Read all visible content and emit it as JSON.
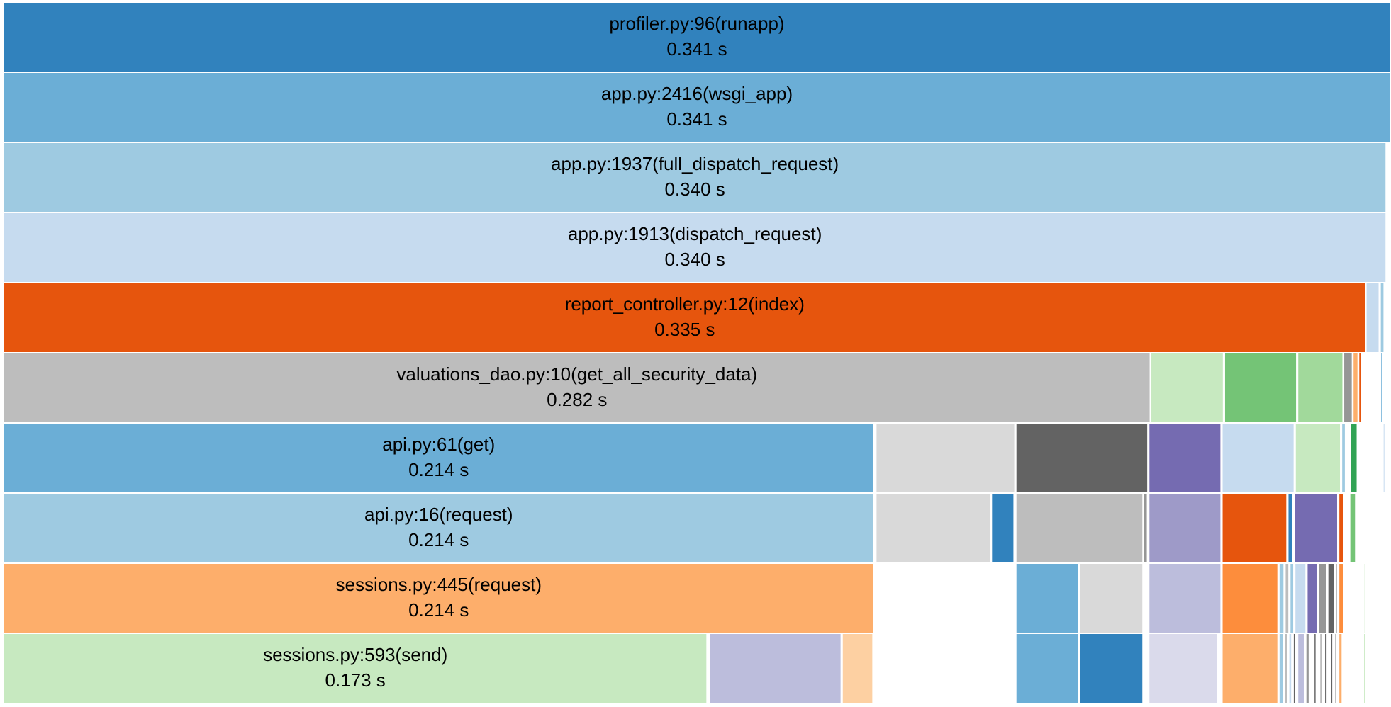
{
  "chart_data": {
    "type": "icicle",
    "title": "",
    "xlabel": "",
    "ylabel": "",
    "unit": "s",
    "x_domain": [
      0,
      0.341
    ],
    "levels": 10,
    "nodes": [
      {
        "label": "profiler.py:96(runapp)",
        "value": 0.341,
        "value_label": "0.341 s",
        "depth": 0,
        "start": 0.0,
        "color": "#3182bd"
      },
      {
        "label": "app.py:2416(wsgi_app)",
        "value": 0.341,
        "value_label": "0.341 s",
        "depth": 1,
        "start": 0.0,
        "color": "#6baed6"
      },
      {
        "label": "app.py:1937(full_dispatch_request)",
        "value": 0.34,
        "value_label": "0.340 s",
        "depth": 2,
        "start": 0.0,
        "color": "#9ecae1"
      },
      {
        "label": "app.py:1913(dispatch_request)",
        "value": 0.34,
        "value_label": "0.340 s",
        "depth": 3,
        "start": 0.0,
        "color": "#c6dbef"
      },
      {
        "label": "report_controller.py:12(index)",
        "value": 0.335,
        "value_label": "0.335 s",
        "depth": 4,
        "start": 0.0,
        "color": "#e6550d"
      },
      {
        "label": "",
        "value": 0.0033,
        "depth": 4,
        "start": 0.335,
        "color": "#c6dbef"
      },
      {
        "label": "",
        "value": 0.001,
        "depth": 4,
        "start": 0.3385,
        "color": "#9ecae1"
      },
      {
        "label": "valuations_dao.py:10(get_all_security_data)",
        "value": 0.282,
        "value_label": "0.282 s",
        "depth": 5,
        "start": 0.0,
        "color": "#bdbdbd"
      },
      {
        "label": "",
        "value": 0.018,
        "depth": 5,
        "start": 0.282,
        "color": "#c7e9c0"
      },
      {
        "label": "",
        "value": 0.0178,
        "depth": 5,
        "start": 0.3002,
        "color": "#74c476"
      },
      {
        "label": "",
        "value": 0.0112,
        "depth": 5,
        "start": 0.3182,
        "color": "#a1d99b"
      },
      {
        "label": "",
        "value": 0.0022,
        "depth": 5,
        "start": 0.3295,
        "color": "#969696"
      },
      {
        "label": "",
        "value": 0.0013,
        "depth": 5,
        "start": 0.3318,
        "color": "#fdae6b"
      },
      {
        "label": "",
        "value": 0.0008,
        "depth": 5,
        "start": 0.3332,
        "color": "#e6550d"
      },
      {
        "label": "",
        "value": 0.0003,
        "depth": 5,
        "start": 0.3386,
        "color": "#6baed6"
      },
      {
        "label": "api.py:61(get)",
        "value": 0.214,
        "value_label": "0.214 s",
        "depth": 6,
        "start": 0.0,
        "color": "#6baed6"
      },
      {
        "label": "",
        "value": 0.0342,
        "depth": 6,
        "start": 0.2145,
        "color": "#d9d9d9"
      },
      {
        "label": "",
        "value": 0.0325,
        "depth": 6,
        "start": 0.2489,
        "color": "#636363"
      },
      {
        "label": "",
        "value": 0.0178,
        "depth": 6,
        "start": 0.2816,
        "color": "#756bb1"
      },
      {
        "label": "",
        "value": 0.0178,
        "depth": 6,
        "start": 0.2996,
        "color": "#c6dbef"
      },
      {
        "label": "",
        "value": 0.0112,
        "depth": 6,
        "start": 0.3176,
        "color": "#c7e9c0"
      },
      {
        "label": "",
        "value": 0.001,
        "depth": 6,
        "start": 0.329,
        "color": "#9ecae1"
      },
      {
        "label": "",
        "value": 0.0017,
        "depth": 6,
        "start": 0.3312,
        "color": "#31a354"
      },
      {
        "label": "",
        "value": 0.0003,
        "depth": 6,
        "start": 0.3392,
        "color": "#c6dbef"
      },
      {
        "label": "api.py:16(request)",
        "value": 0.214,
        "value_label": "0.214 s",
        "depth": 7,
        "start": 0.0,
        "color": "#9ecae1"
      },
      {
        "label": "",
        "value": 0.0282,
        "depth": 7,
        "start": 0.2145,
        "color": "#d9d9d9"
      },
      {
        "label": "",
        "value": 0.0056,
        "depth": 7,
        "start": 0.2429,
        "color": "#3182bd"
      },
      {
        "label": "",
        "value": 0.0313,
        "depth": 7,
        "start": 0.2489,
        "color": "#bdbdbd"
      },
      {
        "label": "",
        "value": 0.001,
        "depth": 7,
        "start": 0.2803,
        "color": "#969696"
      },
      {
        "label": "",
        "value": 0.0178,
        "depth": 7,
        "start": 0.2816,
        "color": "#9e9ac8"
      },
      {
        "label": "",
        "value": 0.016,
        "depth": 7,
        "start": 0.2996,
        "color": "#e6550d"
      },
      {
        "label": "",
        "value": 0.0013,
        "depth": 7,
        "start": 0.3158,
        "color": "#3182bd"
      },
      {
        "label": "",
        "value": 0.0108,
        "depth": 7,
        "start": 0.3173,
        "color": "#756bb1"
      },
      {
        "label": "",
        "value": 0.0013,
        "depth": 7,
        "start": 0.3283,
        "color": "#e6550d"
      },
      {
        "label": "",
        "value": 0.0015,
        "depth": 7,
        "start": 0.331,
        "color": "#74c476"
      },
      {
        "label": "sessions.py:445(request)",
        "value": 0.214,
        "value_label": "0.214 s",
        "depth": 8,
        "start": 0.0,
        "color": "#fdae6b"
      },
      {
        "label": "",
        "value": 0.0154,
        "depth": 8,
        "start": 0.2489,
        "color": "#6baed6"
      },
      {
        "label": "",
        "value": 0.0157,
        "depth": 8,
        "start": 0.2645,
        "color": "#d9d9d9"
      },
      {
        "label": "",
        "value": 0.0178,
        "depth": 8,
        "start": 0.2816,
        "color": "#bcbddc"
      },
      {
        "label": "",
        "value": 0.0138,
        "depth": 8,
        "start": 0.2996,
        "color": "#fd8d3c"
      },
      {
        "label": "",
        "value": 0.0013,
        "depth": 8,
        "start": 0.3136,
        "color": "#9ecae1"
      },
      {
        "label": "",
        "value": 0.001,
        "depth": 8,
        "start": 0.3151,
        "color": "#bdbdbd"
      },
      {
        "label": "",
        "value": 0.001,
        "depth": 8,
        "start": 0.3163,
        "color": "#9ecae1"
      },
      {
        "label": "",
        "value": 0.0028,
        "depth": 8,
        "start": 0.3175,
        "color": "#c6dbef"
      },
      {
        "label": "",
        "value": 0.0026,
        "depth": 8,
        "start": 0.3205,
        "color": "#756bb1"
      },
      {
        "label": "",
        "value": 0.0021,
        "depth": 8,
        "start": 0.3233,
        "color": "#969696"
      },
      {
        "label": "",
        "value": 0.0017,
        "depth": 8,
        "start": 0.3256,
        "color": "#636363"
      },
      {
        "label": "",
        "value": 0.0006,
        "depth": 8,
        "start": 0.3275,
        "color": "#bdbdbd"
      },
      {
        "label": "",
        "value": 0.0013,
        "depth": 8,
        "start": 0.3283,
        "color": "#fd8d3c"
      },
      {
        "label": "",
        "value": 0.0003,
        "depth": 8,
        "start": 0.3345,
        "color": "#c7e9c0"
      },
      {
        "label": "sessions.py:593(send)",
        "value": 0.173,
        "value_label": "0.173 s",
        "depth": 9,
        "start": 0.0,
        "color": "#c7e9c0"
      },
      {
        "label": "",
        "value": 0.0325,
        "depth": 9,
        "start": 0.1735,
        "color": "#bcbddc"
      },
      {
        "label": "",
        "value": 0.0076,
        "depth": 9,
        "start": 0.2062,
        "color": "#fdd0a2"
      },
      {
        "label": "",
        "value": 0.0154,
        "depth": 9,
        "start": 0.2489,
        "color": "#6baed6"
      },
      {
        "label": "",
        "value": 0.0157,
        "depth": 9,
        "start": 0.2645,
        "color": "#3182bd"
      },
      {
        "label": "",
        "value": 0.0169,
        "depth": 9,
        "start": 0.2816,
        "color": "#dadaeb"
      },
      {
        "label": "",
        "value": 0.0138,
        "depth": 9,
        "start": 0.2996,
        "color": "#fdae6b"
      },
      {
        "label": "",
        "value": 0.0011,
        "depth": 9,
        "start": 0.3136,
        "color": "#9ecae1"
      },
      {
        "label": "",
        "value": 0.0008,
        "depth": 9,
        "start": 0.315,
        "color": "#bdbdbd"
      },
      {
        "label": "",
        "value": 0.0008,
        "depth": 9,
        "start": 0.316,
        "color": "#c6dbef"
      },
      {
        "label": "",
        "value": 0.0007,
        "depth": 9,
        "start": 0.3171,
        "color": "#636363"
      },
      {
        "label": "",
        "value": 0.0017,
        "depth": 9,
        "start": 0.3182,
        "color": "#bcbddc"
      },
      {
        "label": "",
        "value": 0.0009,
        "depth": 9,
        "start": 0.3202,
        "color": "#969696"
      },
      {
        "label": "",
        "value": 0.0006,
        "depth": 9,
        "start": 0.3222,
        "color": "#636363"
      },
      {
        "label": "",
        "value": 0.0007,
        "depth": 9,
        "start": 0.3236,
        "color": "#bdbdbd"
      },
      {
        "label": "",
        "value": 0.0007,
        "depth": 9,
        "start": 0.3248,
        "color": "#636363"
      },
      {
        "label": "",
        "value": 0.0007,
        "depth": 9,
        "start": 0.3262,
        "color": "#636363"
      },
      {
        "label": "",
        "value": 0.0005,
        "depth": 9,
        "start": 0.3273,
        "color": "#969696"
      },
      {
        "label": "",
        "value": 0.0009,
        "depth": 9,
        "start": 0.3283,
        "color": "#fdae6b"
      },
      {
        "label": "",
        "value": 0.0002,
        "depth": 9,
        "start": 0.3344,
        "color": "#c7e9c0"
      }
    ]
  }
}
